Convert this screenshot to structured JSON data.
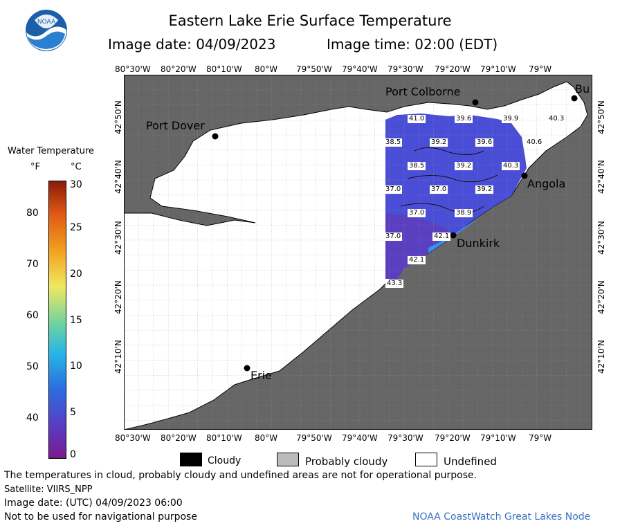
{
  "header": {
    "title": "Eastern Lake Erie Surface Temperature",
    "image_date": "Image date: 04/09/2023",
    "image_time": "Image time: 02:00 (EDT)"
  },
  "logo": {
    "text": "NOAA"
  },
  "axes": {
    "lon_ticks": [
      "80°30'W",
      "80°20'W",
      "80°10'W",
      "80°W",
      "79°50'W",
      "79°40'W",
      "79°30'W",
      "79°20'W",
      "79°10'W",
      "79°W"
    ],
    "lat_ticks": [
      "42°50'N",
      "42°40'N",
      "42°30'N",
      "42°20'N",
      "42°10'N"
    ]
  },
  "cities": {
    "port_colborne": "Port Colborne",
    "port_dover": "Port Dover",
    "angola": "Angola",
    "dunkirk": "Dunkirk",
    "erie": "Erie",
    "buffalo": "Bu"
  },
  "temperature_labels": [
    {
      "id": "t1",
      "value": "41.0"
    },
    {
      "id": "t2",
      "value": "39.6"
    },
    {
      "id": "t3",
      "value": "39.9"
    },
    {
      "id": "t4",
      "value": "40.3"
    },
    {
      "id": "t5",
      "value": "38.5"
    },
    {
      "id": "t6",
      "value": "39.2"
    },
    {
      "id": "t7",
      "value": "39.6"
    },
    {
      "id": "t8",
      "value": "40.6"
    },
    {
      "id": "t9",
      "value": "38.5"
    },
    {
      "id": "t10",
      "value": "39.2"
    },
    {
      "id": "t11",
      "value": "40.3"
    },
    {
      "id": "t12",
      "value": "37.0"
    },
    {
      "id": "t13",
      "value": "37.0"
    },
    {
      "id": "t14",
      "value": "39.2"
    },
    {
      "id": "t15",
      "value": "37.0"
    },
    {
      "id": "t16",
      "value": "38.9"
    },
    {
      "id": "t17",
      "value": "37.0"
    },
    {
      "id": "t18",
      "value": "42.1"
    },
    {
      "id": "t19",
      "value": "42.1"
    },
    {
      "id": "t20",
      "value": "43.3"
    }
  ],
  "color_legend": {
    "title": "Water Temperature",
    "unit_f": "°F",
    "unit_c": "°C",
    "f_ticks": [
      "80",
      "70",
      "60",
      "50",
      "40"
    ],
    "c_ticks": [
      "30",
      "25",
      "20",
      "15",
      "10",
      "5",
      "0"
    ]
  },
  "key_legend": {
    "cloudy": "Cloudy",
    "probably_cloudy": "Probably cloudy",
    "undefined": "Undefined"
  },
  "footer": {
    "disclaimer": "The temperatures in cloud, probably cloudy and undefined areas are not for operational purpose.",
    "satellite": "Satellite: VIIRS_NPP",
    "utc_date": "Image date: (UTC) 04/09/2023  06:00",
    "nav_warning": "Not to be used for navigational purpose",
    "credit": "NOAA CoastWatch Great Lakes Node"
  },
  "colors": {
    "land": "#666666",
    "lake_undefined": "#ffffff",
    "credit": "#3a6fc4"
  }
}
